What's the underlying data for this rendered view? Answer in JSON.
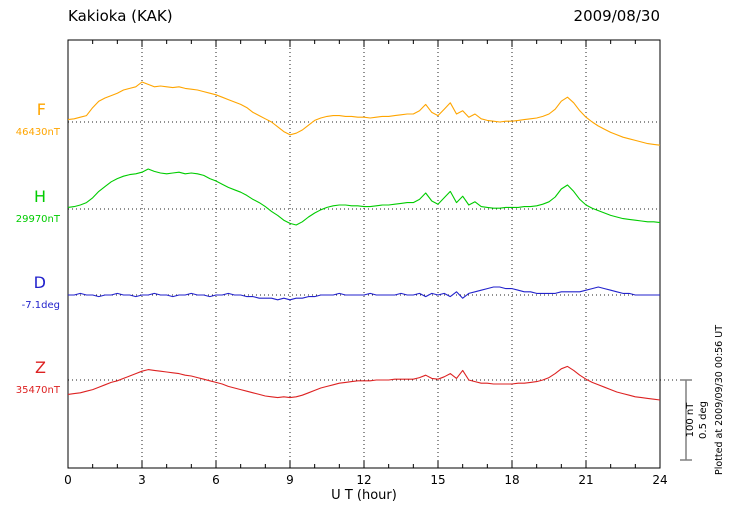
{
  "header": {
    "title": "Kakioka (KAK)",
    "date": "2009/08/30"
  },
  "footer": {
    "plotted_at": "Plotted at 2009/09/30 00:56 UT"
  },
  "scale_bar": {
    "nt_label": "100 nT",
    "deg_label": "0.5 deg"
  },
  "chart_data": {
    "type": "line",
    "title": "Kakioka (KAK)",
    "date": "2009/08/30",
    "xlabel": "U T (hour)",
    "xlim": [
      0,
      24
    ],
    "x_ticks": [
      0,
      3,
      6,
      9,
      12,
      15,
      18,
      21,
      24
    ],
    "minor_tick": 1,
    "x_start": 0,
    "x_step": 0.25,
    "grid": "dotted",
    "scale_bar": {
      "nT": 100,
      "deg": 0.5
    },
    "series": [
      {
        "name": "F",
        "label": "F",
        "baseline_label": "46430nT",
        "baseline_value": 46430,
        "units": "nT",
        "per_bar": 100,
        "color": "#ffa500",
        "values": [
          3,
          4,
          6,
          8,
          18,
          26,
          30,
          33,
          36,
          40,
          42,
          44,
          50,
          47,
          44,
          45,
          44,
          43,
          44,
          42,
          41,
          40,
          38,
          36,
          34,
          31,
          28,
          25,
          22,
          18,
          12,
          8,
          4,
          0,
          -6,
          -12,
          -16,
          -14,
          -10,
          -4,
          2,
          5,
          7,
          8,
          8,
          7,
          7,
          6,
          6,
          5,
          6,
          7,
          7,
          8,
          9,
          10,
          10,
          14,
          22,
          12,
          8,
          16,
          24,
          10,
          14,
          6,
          10,
          4,
          2,
          1,
          0,
          1,
          1,
          2,
          3,
          4,
          5,
          7,
          10,
          16,
          26,
          31,
          24,
          14,
          6,
          0,
          -5,
          -9,
          -13,
          -16,
          -19,
          -21,
          -23,
          -25,
          -27,
          -28,
          -29
        ]
      },
      {
        "name": "H",
        "label": "H",
        "baseline_label": "29970nT",
        "baseline_value": 29970,
        "units": "nT",
        "per_bar": 100,
        "color": "#00cc00",
        "values": [
          2,
          3,
          5,
          8,
          14,
          22,
          28,
          34,
          38,
          41,
          43,
          44,
          46,
          50,
          47,
          45,
          44,
          45,
          46,
          44,
          45,
          44,
          42,
          38,
          35,
          31,
          27,
          24,
          21,
          17,
          12,
          8,
          3,
          -3,
          -8,
          -14,
          -18,
          -20,
          -16,
          -10,
          -5,
          -1,
          2,
          4,
          5,
          5,
          4,
          4,
          3,
          3,
          4,
          5,
          5,
          6,
          7,
          8,
          8,
          12,
          20,
          10,
          6,
          14,
          22,
          8,
          16,
          5,
          9,
          3,
          2,
          1,
          1,
          2,
          2,
          2,
          3,
          3,
          4,
          6,
          9,
          15,
          25,
          30,
          22,
          12,
          5,
          1,
          -2,
          -5,
          -8,
          -10,
          -12,
          -13,
          -14,
          -15,
          -16,
          -16,
          -17
        ]
      },
      {
        "name": "D",
        "label": "D",
        "baseline_label": "-7.1deg",
        "baseline_value": -7.1,
        "units": "deg",
        "per_bar": 0.5,
        "color": "#2222cc",
        "values": [
          0,
          0,
          0.01,
          0,
          0,
          -0.01,
          0,
          0,
          0.01,
          0,
          0,
          -0.01,
          0,
          0,
          0.01,
          0,
          0,
          -0.01,
          0,
          0,
          0.01,
          0,
          0,
          -0.01,
          0,
          0,
          0.01,
          0,
          0,
          -0.01,
          -0.01,
          -0.02,
          -0.02,
          -0.02,
          -0.03,
          -0.02,
          -0.03,
          -0.02,
          -0.02,
          -0.01,
          -0.01,
          0,
          0,
          0,
          0.01,
          0,
          0,
          0,
          0,
          0.01,
          0,
          0,
          0,
          0,
          0.01,
          0,
          0,
          0.01,
          -0.01,
          0.01,
          0,
          0.01,
          -0.01,
          0.02,
          -0.02,
          0.01,
          0.02,
          0.03,
          0.04,
          0.05,
          0.05,
          0.04,
          0.04,
          0.03,
          0.02,
          0.02,
          0.01,
          0.01,
          0.01,
          0.01,
          0.02,
          0.02,
          0.02,
          0.02,
          0.03,
          0.04,
          0.05,
          0.04,
          0.03,
          0.02,
          0.01,
          0.01,
          0,
          0,
          0,
          0,
          0
        ]
      },
      {
        "name": "Z",
        "label": "Z",
        "baseline_label": "35470nT",
        "baseline_value": 35470,
        "units": "nT",
        "per_bar": 100,
        "color": "#dd2222",
        "values": [
          -18,
          -17,
          -16,
          -14,
          -12,
          -9,
          -6,
          -3,
          -1,
          2,
          5,
          8,
          11,
          13,
          12,
          11,
          10,
          9,
          8,
          6,
          5,
          3,
          1,
          -1,
          -3,
          -5,
          -8,
          -10,
          -12,
          -14,
          -16,
          -18,
          -20,
          -21,
          -22,
          -21,
          -22,
          -21,
          -19,
          -16,
          -13,
          -10,
          -8,
          -6,
          -4,
          -3,
          -2,
          -1,
          -1,
          -1,
          0,
          0,
          0,
          1,
          1,
          1,
          1,
          3,
          6,
          2,
          1,
          4,
          8,
          2,
          12,
          0,
          -2,
          -4,
          -4,
          -5,
          -5,
          -5,
          -5,
          -4,
          -4,
          -3,
          -2,
          0,
          3,
          8,
          14,
          17,
          12,
          6,
          1,
          -3,
          -6,
          -9,
          -12,
          -15,
          -17,
          -19,
          -21,
          -22,
          -23,
          -24,
          -25
        ]
      }
    ]
  }
}
